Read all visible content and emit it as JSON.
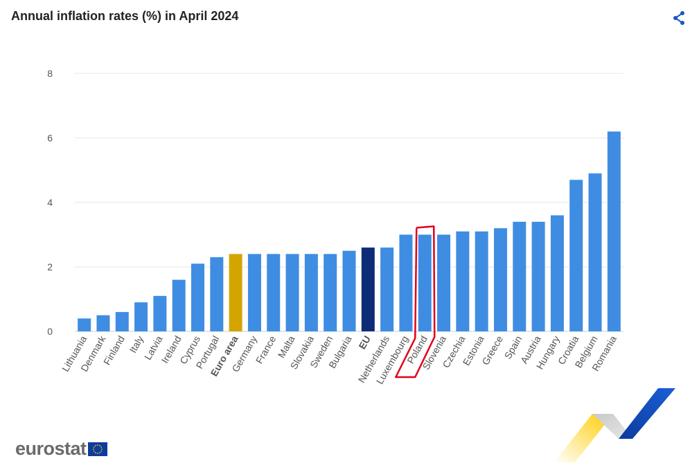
{
  "title": "Annual inflation rates (%) in April 2024",
  "logo": {
    "text": "eurostat"
  },
  "icons": {
    "share": "share-icon",
    "flag": "eu-flag-icon"
  },
  "colors": {
    "bar": "#3e8de3",
    "euro_area": "#d4a500",
    "eu": "#0d2c78",
    "highlight": "#e0001a",
    "share": "#1a56c9",
    "grid": "#e3e6ea"
  },
  "chart_data": {
    "type": "bar",
    "title": "Annual inflation rates (%) in April 2024",
    "xlabel": "",
    "ylabel": "",
    "ylim": [
      0,
      8
    ],
    "yticks": [
      0,
      2,
      4,
      6,
      8
    ],
    "grid": true,
    "categories": [
      "Lithuania",
      "Denmark",
      "Finland",
      "Italy",
      "Latvia",
      "Ireland",
      "Cyprus",
      "Portugal",
      "Euro area",
      "Germany",
      "France",
      "Malta",
      "Slovakia",
      "Sweden",
      "Bulgaria",
      "EU",
      "Netherlands",
      "Luxembourg",
      "Poland",
      "Slovenia",
      "Czechia",
      "Estonia",
      "Greece",
      "Spain",
      "Austria",
      "Hungary",
      "Croatia",
      "Belgium",
      "Romania"
    ],
    "values": [
      0.4,
      0.5,
      0.6,
      0.9,
      1.1,
      1.6,
      2.1,
      2.3,
      2.4,
      2.4,
      2.4,
      2.4,
      2.4,
      2.4,
      2.5,
      2.6,
      2.6,
      3.0,
      3.0,
      3.0,
      3.1,
      3.1,
      3.2,
      3.4,
      3.4,
      3.6,
      4.7,
      4.9,
      6.2
    ],
    "special_categories": {
      "Euro area": "euro_area",
      "EU": "eu"
    },
    "bold_categories": [
      "Euro area",
      "EU"
    ],
    "highlighted_category": "Poland"
  }
}
